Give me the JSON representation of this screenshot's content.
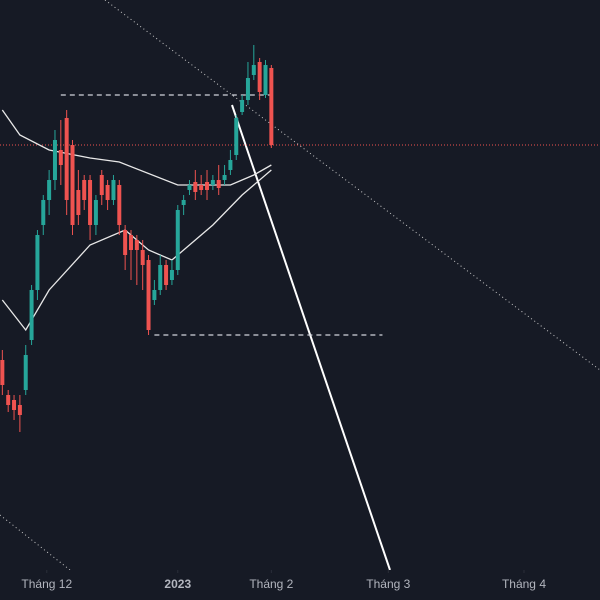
{
  "chart_data": {
    "type": "candlestick",
    "x": [
      0,
      1,
      2,
      3,
      4,
      5,
      6,
      7,
      8,
      9,
      10,
      11,
      12,
      13,
      14,
      15,
      16,
      17,
      18,
      19,
      20,
      21,
      22,
      23,
      24,
      25,
      26,
      27,
      28,
      29,
      30,
      31,
      32,
      33,
      34,
      35,
      36,
      37,
      38,
      39,
      40,
      41,
      42,
      43,
      44,
      45,
      46
    ],
    "open": [
      210,
      175,
      170,
      165,
      180,
      230,
      280,
      345,
      370,
      390,
      420,
      452,
      425,
      380,
      390,
      390,
      345,
      395,
      385,
      370,
      385,
      340,
      335,
      330,
      320,
      310,
      270,
      280,
      305,
      290,
      300,
      365,
      380,
      388,
      385,
      388,
      385,
      390,
      390,
      400,
      415,
      458,
      470,
      495,
      508,
      475,
      502
    ],
    "high": [
      220,
      180,
      175,
      175,
      225,
      285,
      340,
      375,
      400,
      440,
      450,
      460,
      430,
      400,
      395,
      395,
      375,
      400,
      390,
      395,
      390,
      345,
      340,
      335,
      330,
      315,
      290,
      315,
      310,
      310,
      365,
      375,
      390,
      400,
      395,
      400,
      395,
      405,
      405,
      420,
      455,
      475,
      508,
      525,
      512,
      510,
      505
    ],
    "low": [
      175,
      158,
      150,
      138,
      175,
      225,
      270,
      335,
      355,
      380,
      385,
      355,
      335,
      345,
      360,
      330,
      335,
      365,
      360,
      365,
      335,
      300,
      290,
      285,
      280,
      235,
      265,
      275,
      280,
      285,
      295,
      355,
      375,
      370,
      375,
      370,
      380,
      375,
      385,
      395,
      410,
      455,
      465,
      490,
      470,
      472,
      422
    ],
    "close": [
      185,
      165,
      160,
      155,
      215,
      280,
      335,
      370,
      390,
      430,
      405,
      370,
      345,
      355,
      370,
      345,
      370,
      375,
      370,
      390,
      345,
      315,
      320,
      320,
      305,
      240,
      280,
      305,
      285,
      300,
      360,
      370,
      385,
      378,
      380,
      380,
      390,
      382,
      395,
      410,
      452,
      470,
      492,
      505,
      478,
      505,
      425
    ],
    "up_color": "#26a69a",
    "down_color": "#ef5350",
    "lines": [
      {
        "color": "#e8e8e8",
        "x": [
          0,
          3,
          8,
          15,
          20,
          30,
          39,
          43,
          46
        ],
        "values": [
          460,
          435,
          420,
          412,
          408,
          385,
          385,
          395,
          405
        ]
      },
      {
        "color": "#e8e8e8",
        "x": [
          0,
          4,
          8,
          15,
          21,
          25,
          29,
          36,
          41,
          46
        ],
        "values": [
          270,
          240,
          280,
          325,
          340,
          320,
          310,
          345,
          375,
          400
        ]
      }
    ],
    "levels": [
      {
        "value": 475,
        "x": [
          10,
          46.5
        ],
        "color": "#d1d4dc"
      },
      {
        "value": 235,
        "x": [
          26,
          65
        ],
        "color": "#d1d4dc"
      }
    ],
    "last_price": {
      "value": 425,
      "color": "#ef5350"
    },
    "xlim": [
      -0.4,
      102.2
    ],
    "ylim": [
      0,
      570
    ],
    "xticks": [
      {
        "value": 7.6,
        "label": "Tháng 12"
      },
      {
        "value": 30,
        "label": "2023"
      },
      {
        "value": 46,
        "label": "Tháng 2"
      },
      {
        "value": 66,
        "label": "Tháng 3"
      },
      {
        "value": 89.2,
        "label": "Tháng 4"
      }
    ]
  }
}
